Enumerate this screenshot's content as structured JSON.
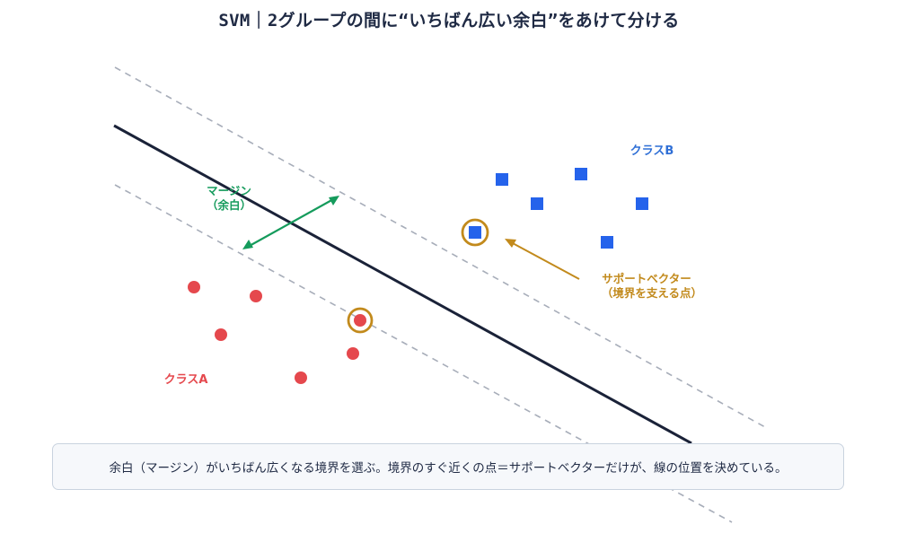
{
  "title": "SVM｜2グループの間に“いちばん広い余白”をあけて分ける",
  "labels": {
    "class_b": "クラスB",
    "class_a": "クラスA",
    "margin_line1": "マージン",
    "margin_line2": "（余白）",
    "support_line1": "サポートベクター",
    "support_line2": "（境界を支える点）"
  },
  "caption": "余白（マージン）がいちばん広くなる境界を選ぶ。境界のすぐ近くの点＝サポートベクターだけが、線の位置を決めている。",
  "colors": {
    "class_a": "#e5484d",
    "class_b": "#2563eb",
    "boundary": "#1a2238",
    "margin_lines": "#a7adb9",
    "margin_arrow": "#159b5c",
    "support": "#c28a1c"
  },
  "icons": {
    "class_a_marker": "circle",
    "class_b_marker": "square",
    "support_marker": "ring"
  }
}
